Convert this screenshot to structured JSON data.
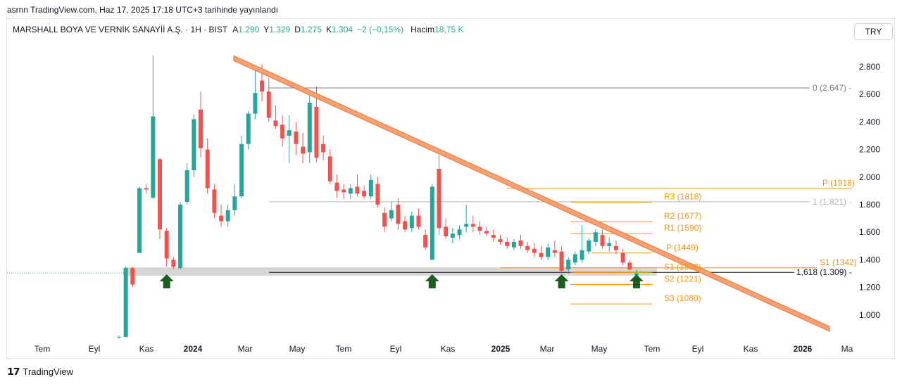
{
  "header": {
    "published": "asrnn TradingView.com, Haz 17, 2025 17:18 UTC+3 tarihinde yayınlandı"
  },
  "legend": {
    "symbol": "MARSHALL BOYA VE VERNİK SANAYİİ A.Ş. · 1H · BIST",
    "open_label": "A",
    "open": "1.290",
    "high_label": "Y",
    "high": "1.329",
    "low_label": "D",
    "low": "1.275",
    "close_label": "K",
    "close": "1.304",
    "change": "−2 (−0,15%)",
    "volume_label": "Hacim",
    "volume": "18,75 K"
  },
  "currency_button": "TRY",
  "footer": {
    "logo": "TradingView"
  },
  "colors": {
    "up": "#26a69a",
    "down": "#ef5350",
    "trend": "#f7a172",
    "pivot": "#f7931a",
    "fib": "#787b86",
    "zone": "#cfcfcf",
    "arrow": "#1b5e20"
  },
  "chart_data": {
    "type": "candlestick",
    "y_axis": {
      "ticks": [
        "2.800",
        "2.600",
        "2.400",
        "2.200",
        "2.000",
        "1.800",
        "1.600",
        "1.400",
        "1.200",
        "1.000"
      ]
    },
    "x_axis": {
      "ticks": [
        "Tem",
        "Eyl",
        "Kas",
        "2024",
        "Mar",
        "May",
        "Tem",
        "Eyl",
        "Kas",
        "2025",
        "Mar",
        "May",
        "Tem",
        "Eyl",
        "Kas",
        "2026",
        "Ma"
      ]
    },
    "candles": [
      [
        0.84,
        0.85,
        0.83,
        0.84
      ],
      [
        0.84,
        1.35,
        0.84,
        1.34
      ],
      [
        1.34,
        1.35,
        1.2,
        1.22
      ],
      [
        1.45,
        1.93,
        1.45,
        1.92
      ],
      [
        1.92,
        1.95,
        1.88,
        1.91
      ],
      [
        1.85,
        2.88,
        1.84,
        2.44
      ],
      [
        2.13,
        2.14,
        1.55,
        1.62
      ],
      [
        1.61,
        1.63,
        1.35,
        1.41
      ],
      [
        1.4,
        1.42,
        1.33,
        1.35
      ],
      [
        1.34,
        1.82,
        1.33,
        1.8
      ],
      [
        1.82,
        2.1,
        1.8,
        2.05
      ],
      [
        2.05,
        2.45,
        2.0,
        2.42
      ],
      [
        2.49,
        2.62,
        2.14,
        2.21
      ],
      [
        2.2,
        2.28,
        1.88,
        1.92
      ],
      [
        1.91,
        1.95,
        1.7,
        1.74
      ],
      [
        1.72,
        1.8,
        1.64,
        1.68
      ],
      [
        1.68,
        1.8,
        1.64,
        1.76
      ],
      [
        1.76,
        1.95,
        1.72,
        1.86
      ],
      [
        1.86,
        2.3,
        1.85,
        2.24
      ],
      [
        2.24,
        2.48,
        2.2,
        2.46
      ],
      [
        2.46,
        2.78,
        2.42,
        2.61
      ],
      [
        2.7,
        2.82,
        2.55,
        2.62
      ],
      [
        2.62,
        2.72,
        2.4,
        2.43
      ],
      [
        2.41,
        2.52,
        2.35,
        2.37
      ],
      [
        2.38,
        2.45,
        2.22,
        2.28
      ],
      [
        2.3,
        2.45,
        2.1,
        2.34
      ],
      [
        2.33,
        2.4,
        2.16,
        2.24
      ],
      [
        2.22,
        2.32,
        2.1,
        2.17
      ],
      [
        2.18,
        2.62,
        2.1,
        2.54
      ],
      [
        2.51,
        2.66,
        2.11,
        2.14
      ],
      [
        2.24,
        2.3,
        2.12,
        2.18
      ],
      [
        2.15,
        2.2,
        1.95,
        1.97
      ],
      [
        1.96,
        2.02,
        1.85,
        1.9
      ],
      [
        1.91,
        1.95,
        1.84,
        1.89
      ],
      [
        1.88,
        1.95,
        1.84,
        1.92
      ],
      [
        1.93,
        2.02,
        1.86,
        1.88
      ],
      [
        1.9,
        1.94,
        1.84,
        1.86
      ],
      [
        1.86,
        2.02,
        1.84,
        1.98
      ],
      [
        1.95,
        2.0,
        1.78,
        1.8
      ],
      [
        1.74,
        1.78,
        1.6,
        1.64
      ],
      [
        1.7,
        1.82,
        1.68,
        1.76
      ],
      [
        1.8,
        1.85,
        1.62,
        1.66
      ],
      [
        1.68,
        1.72,
        1.6,
        1.62
      ],
      [
        1.63,
        1.75,
        1.6,
        1.72
      ],
      [
        1.72,
        1.77,
        1.62,
        1.64
      ],
      [
        1.58,
        1.62,
        1.47,
        1.49
      ],
      [
        1.4,
        1.95,
        1.4,
        1.93
      ],
      [
        2.06,
        2.16,
        1.58,
        1.63
      ],
      [
        1.64,
        1.7,
        1.55,
        1.57
      ],
      [
        1.56,
        1.63,
        1.52,
        1.59
      ],
      [
        1.58,
        1.65,
        1.55,
        1.62
      ],
      [
        1.64,
        1.8,
        1.6,
        1.66
      ],
      [
        1.66,
        1.72,
        1.6,
        1.64
      ],
      [
        1.64,
        1.68,
        1.58,
        1.61
      ],
      [
        1.61,
        1.64,
        1.57,
        1.59
      ],
      [
        1.58,
        1.62,
        1.53,
        1.56
      ],
      [
        1.55,
        1.58,
        1.51,
        1.53
      ],
      [
        1.53,
        1.56,
        1.48,
        1.5
      ],
      [
        1.49,
        1.55,
        1.47,
        1.53
      ],
      [
        1.54,
        1.58,
        1.48,
        1.5
      ],
      [
        1.5,
        1.53,
        1.45,
        1.47
      ],
      [
        1.48,
        1.52,
        1.42,
        1.45
      ],
      [
        1.45,
        1.5,
        1.4,
        1.42
      ],
      [
        1.42,
        1.52,
        1.4,
        1.49
      ],
      [
        1.47,
        1.54,
        1.42,
        1.45
      ],
      [
        1.46,
        1.5,
        1.3,
        1.32
      ],
      [
        1.33,
        1.42,
        1.3,
        1.4
      ],
      [
        1.38,
        1.46,
        1.36,
        1.44
      ],
      [
        1.4,
        1.65,
        1.38,
        1.47
      ],
      [
        1.46,
        1.56,
        1.44,
        1.54
      ],
      [
        1.53,
        1.62,
        1.5,
        1.6
      ],
      [
        1.58,
        1.62,
        1.48,
        1.5
      ],
      [
        1.5,
        1.56,
        1.46,
        1.52
      ],
      [
        1.5,
        1.54,
        1.44,
        1.47
      ],
      [
        1.45,
        1.48,
        1.36,
        1.38
      ],
      [
        1.38,
        1.4,
        1.32,
        1.33
      ],
      [
        1.29,
        1.33,
        1.28,
        1.3
      ]
    ],
    "trendline": {
      "from": [
        1,
        2.88
      ],
      "to": [
        2028,
        0.73
      ],
      "label": "descending resistance"
    },
    "support_zone": {
      "low": 1.285,
      "high": 1.345
    },
    "horizontal_line": {
      "value": 1.309,
      "label": "1,618 (1.309)"
    },
    "fib_levels": [
      {
        "label": "0 (2.647)",
        "value": 2.647
      },
      {
        "label": "1 (1.821)",
        "value": 1.821
      }
    ],
    "pivots": [
      {
        "label": "P (1918)",
        "value": 1.918
      },
      {
        "label": "R3 (1818)",
        "value": 1.818
      },
      {
        "label": "R2 (1677)",
        "value": 1.677
      },
      {
        "label": "R1 (1590)",
        "value": 1.59
      },
      {
        "label": "P (1449)",
        "value": 1.449
      },
      {
        "label": "S1 (1342)",
        "value": 1.342
      },
      {
        "label": "S1 (1308)",
        "value": 1.308
      },
      {
        "label": "S2 (1221)",
        "value": 1.221
      },
      {
        "label": "S3 (1080)",
        "value": 1.08
      }
    ],
    "arrows_at_candle": [
      7,
      46,
      65,
      76
    ]
  }
}
